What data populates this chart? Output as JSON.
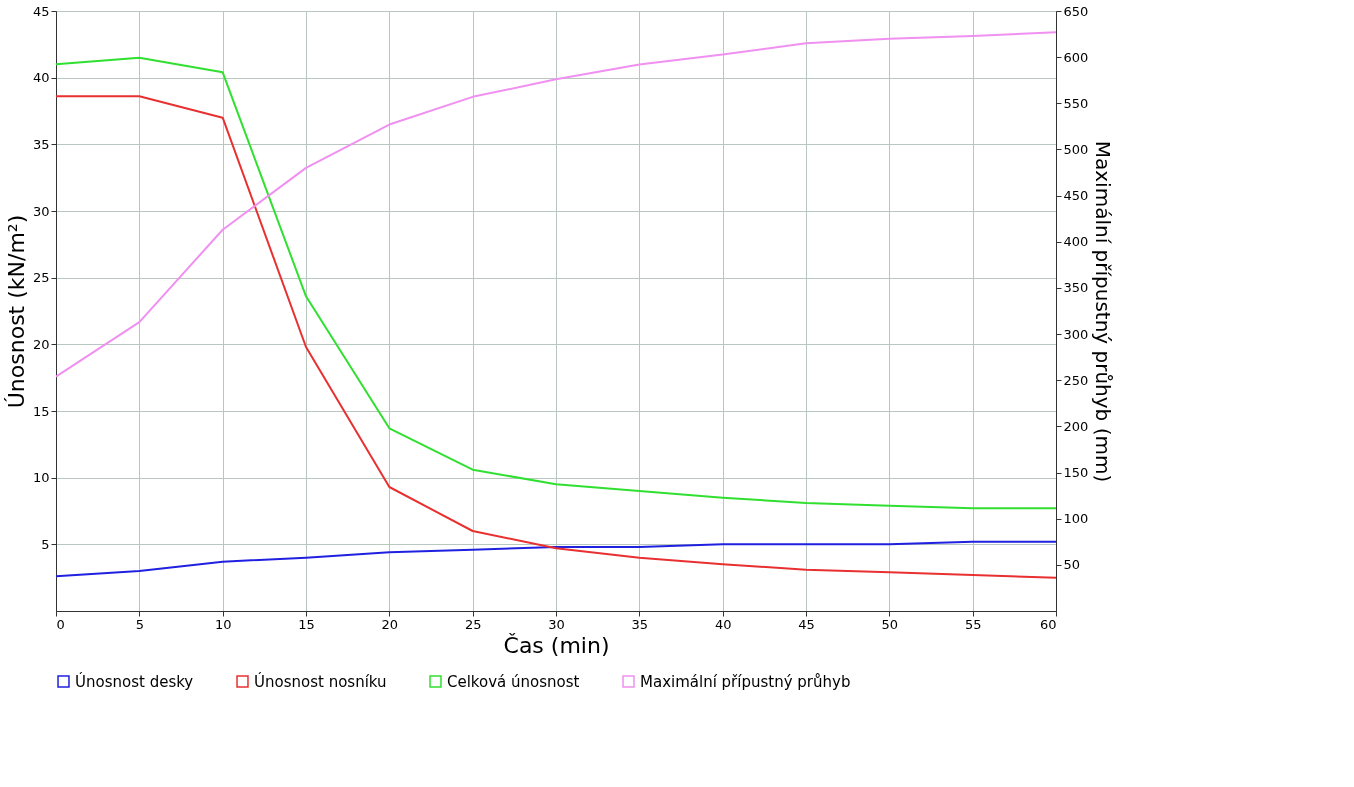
{
  "chart_data": {
    "type": "line",
    "xlabel": "Čas (min)",
    "ylabel": "Únosnost (kN/m²)",
    "y2label": "Maximální přípustný průhyb (mm)",
    "x": [
      0,
      5,
      10,
      15,
      20,
      25,
      30,
      35,
      40,
      45,
      50,
      55,
      60
    ],
    "series": [
      {
        "name": "Únosnost desky",
        "color": "#2020e0",
        "values": [
          2.6,
          3.0,
          3.7,
          4.0,
          4.4,
          4.6,
          4.8,
          4.8,
          5.0,
          5.0,
          5.0,
          5.2,
          5.2
        ]
      },
      {
        "name": "Únosnost nosníku",
        "color": "#e83030",
        "values": [
          38.6,
          38.6,
          37.0,
          19.8,
          9.3,
          6.0,
          4.7,
          4.0,
          3.5,
          3.1,
          2.9,
          2.7,
          2.5
        ]
      },
      {
        "name": "Celková únosnost",
        "color": "#30e030",
        "values": [
          41.0,
          41.5,
          40.4,
          23.6,
          13.7,
          10.6,
          9.5,
          9.0,
          8.5,
          8.1,
          7.9,
          7.7,
          7.7
        ]
      },
      {
        "name": "Maximální přípustný průhyb",
        "color": "#f090f0",
        "axis": "y2",
        "values": [
          254,
          313,
          413,
          480,
          527,
          557,
          576,
          592,
          603,
          615,
          620,
          623,
          627
        ]
      }
    ],
    "xlim": [
      0,
      60
    ],
    "xticks": [
      0,
      5,
      10,
      15,
      20,
      25,
      30,
      35,
      40,
      45,
      50,
      55,
      60
    ],
    "ylim": [
      0,
      45
    ],
    "yticks": [
      5,
      10,
      15,
      20,
      25,
      30,
      35,
      40,
      45
    ],
    "y2lim": [
      0,
      650
    ],
    "y2ticks": [
      50,
      100,
      150,
      200,
      250,
      300,
      350,
      400,
      450,
      500,
      550,
      600,
      650
    ],
    "grid": true,
    "legend": "bottom",
    "marker": "none",
    "line_style": "solid"
  }
}
